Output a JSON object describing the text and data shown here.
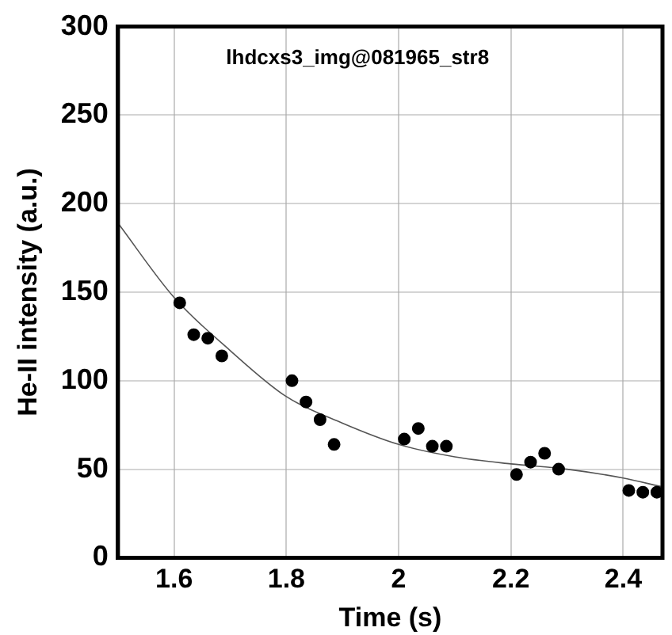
{
  "chart_data": {
    "type": "scatter",
    "xlabel": "Time (s)",
    "ylabel": "He-II intensity (a.u.)",
    "annotations": [
      "lhdcxs3_img@081965_str8"
    ],
    "xlim": [
      1.5,
      2.47
    ],
    "xticks": [
      1.6,
      1.8,
      2,
      2.2,
      2.4
    ],
    "ylim": [
      0,
      300
    ],
    "yticks": [
      0,
      50,
      100,
      150,
      200,
      250,
      300
    ],
    "grid": true,
    "marker": "circle",
    "series": [
      {
        "color": "#000000",
        "x": [
          1.61,
          1.635,
          1.66,
          1.685,
          1.81,
          1.835,
          1.86,
          1.885,
          2.01,
          2.035,
          2.06,
          2.085,
          2.21,
          2.235,
          2.26,
          2.285,
          2.41,
          2.435,
          2.46
        ],
        "values": [
          144,
          126,
          124,
          114,
          100,
          88,
          78,
          64,
          67,
          73,
          63,
          63,
          47,
          54,
          59,
          50,
          38,
          37,
          37
        ]
      },
      {
        "type": "line",
        "color": "#555555",
        "marker": "none",
        "x": [
          1.5,
          1.6,
          1.7,
          1.8,
          1.9,
          2.0,
          2.1,
          2.2,
          2.3,
          2.4,
          2.47
        ],
        "values": [
          189,
          147,
          117,
          91,
          76,
          64,
          57,
          53,
          50,
          45,
          40
        ]
      }
    ]
  }
}
